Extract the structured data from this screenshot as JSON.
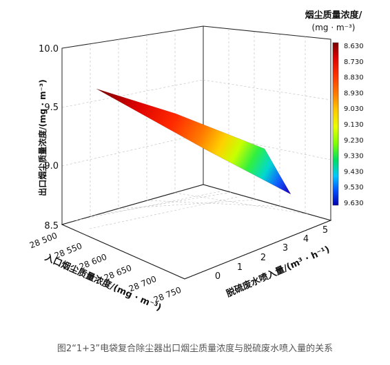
{
  "caption": "图2“1+3”电袋复合除尘器出口烟尘质量浓度与脱硫废水喷入量的关系",
  "chart_data": {
    "type": "surface3d",
    "zlabel": "出口烟尘质量浓度/(mg · m⁻³)",
    "xlabel": "入口烟尘质量浓度/(mg · m⁻³)",
    "ylabel": "脱硫废水喷入量/(m³ · h⁻¹)",
    "z_ticks": [
      "8.5",
      "9.0",
      "9.5",
      "10.0"
    ],
    "x_ticks": [
      "28 500",
      "28 550",
      "28 600",
      "28 650",
      "28 700",
      "28 750"
    ],
    "y_ticks": [
      "0",
      "1",
      "2",
      "3",
      "4",
      "5"
    ],
    "zlim": [
      8.5,
      10.0
    ],
    "xlim": [
      28500,
      28750
    ],
    "ylim": [
      0,
      5
    ],
    "surface_corners": [
      {
        "inlet": 28500,
        "water": 0,
        "outlet": 9.63
      },
      {
        "inlet": 28500,
        "water": 2.1,
        "outlet": 9.4
      },
      {
        "inlet": 28750,
        "water": 5,
        "outlet": 8.63
      },
      {
        "inlet": 28750,
        "water": 4.7,
        "outlet": 8.86
      }
    ],
    "colorbar": {
      "title": "烟尘质量浓度/",
      "unit": "(mg · m⁻³)",
      "labels": [
        "8.630",
        "8.730",
        "8.830",
        "8.930",
        "9.030",
        "9.130",
        "9.230",
        "9.330",
        "9.430",
        "9.530",
        "9.630"
      ],
      "colors": [
        "#7a0000",
        "#dd0000",
        "#ff3000",
        "#ff8000",
        "#ffcc00",
        "#e8ff00",
        "#80ff00",
        "#00e060",
        "#00c8ff",
        "#0050ff",
        "#0000b0"
      ]
    }
  }
}
